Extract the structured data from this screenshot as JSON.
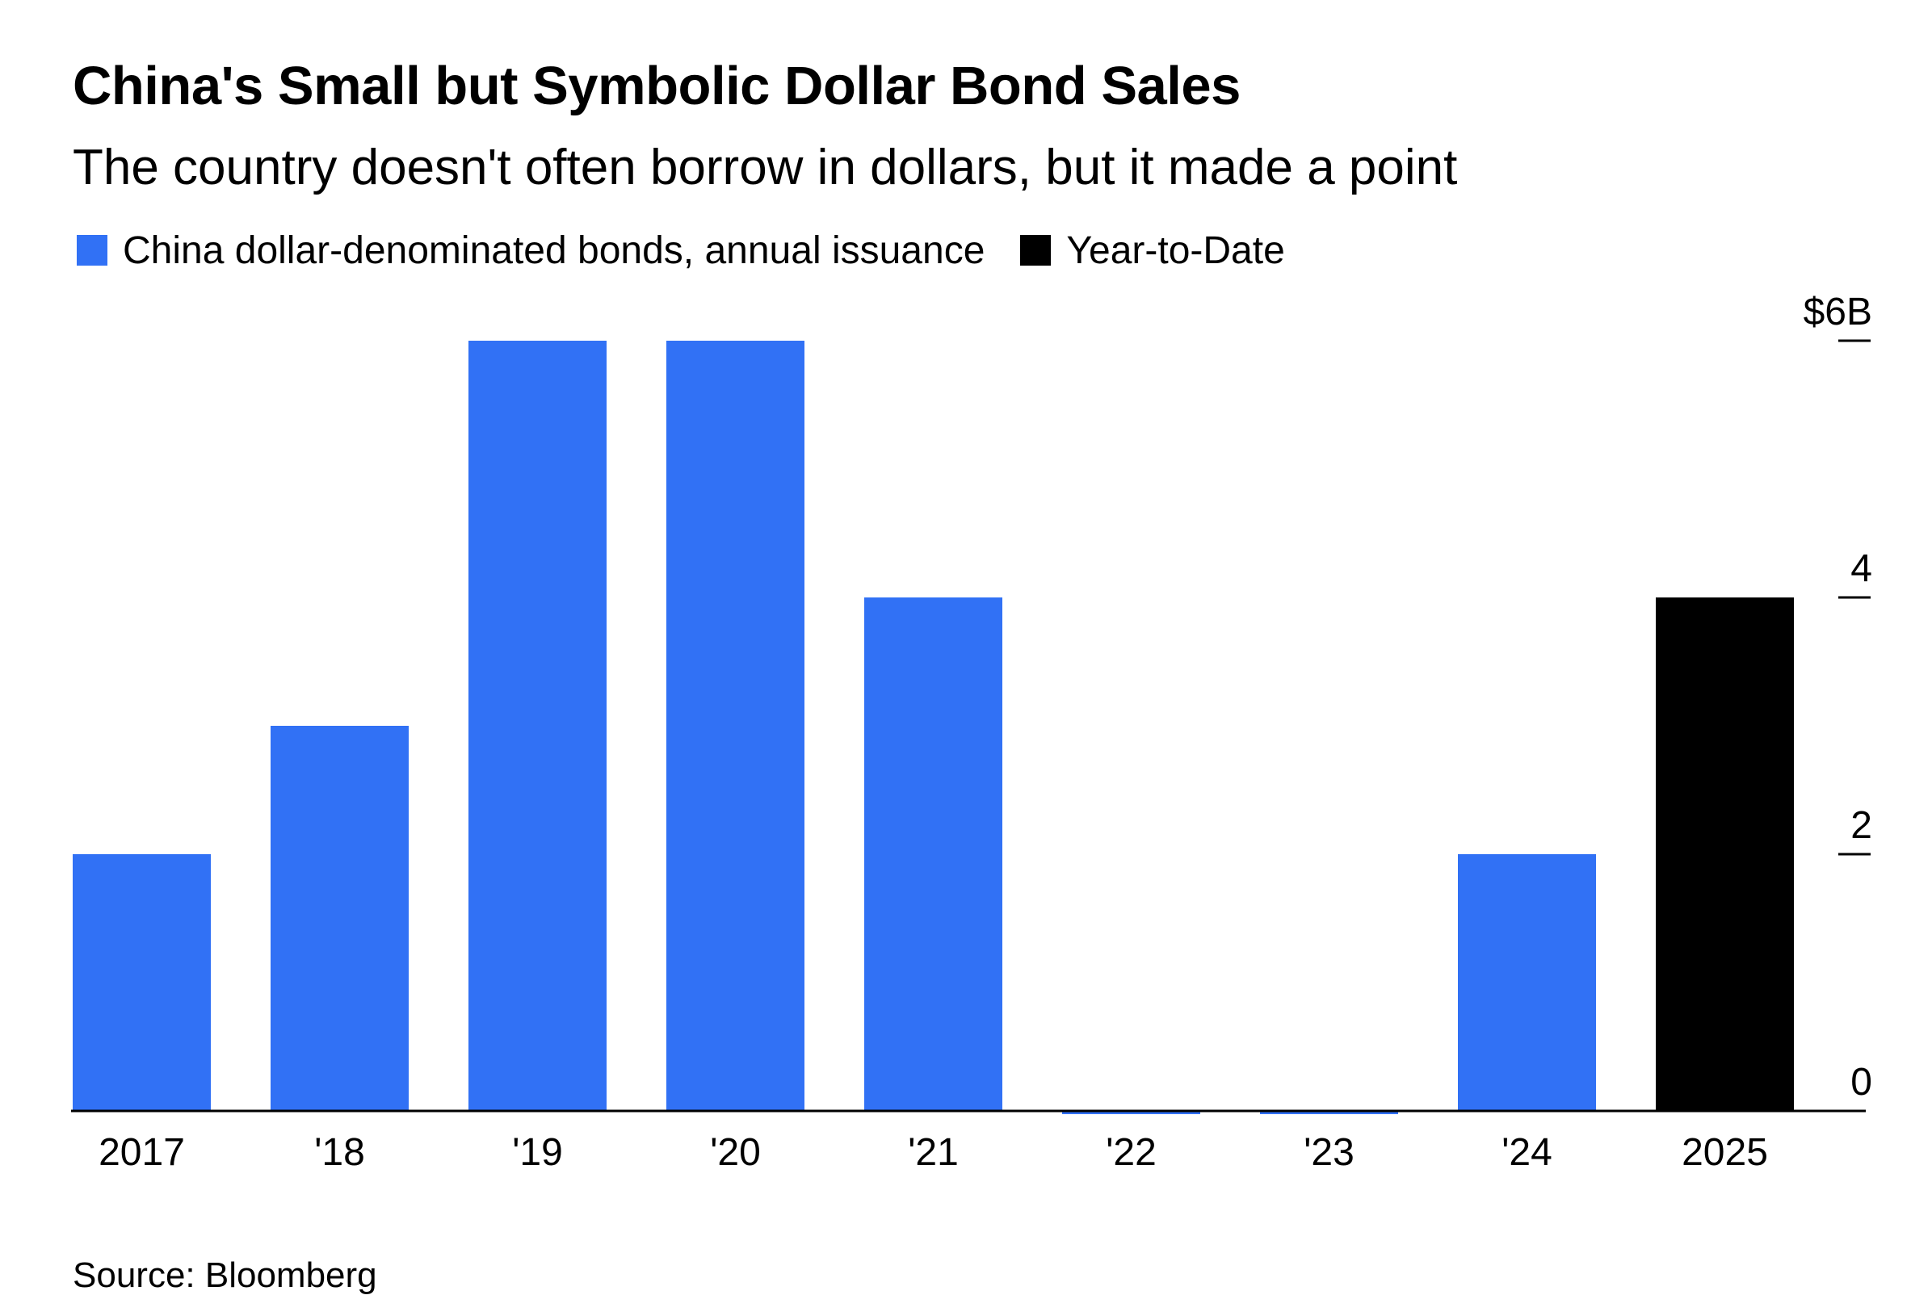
{
  "chart_data": {
    "type": "bar",
    "title": "China's Small but Symbolic Dollar Bond Sales",
    "subtitle": "The country doesn't often borrow in dollars, but it made a point",
    "categories": [
      "2017",
      "'18",
      "'19",
      "'20",
      "'21",
      "'22",
      "'23",
      "'24",
      "2025"
    ],
    "series": [
      {
        "name": "China dollar-denominated bonds, annual issuance",
        "color": "#3171f5",
        "values": [
          2,
          3,
          6,
          6,
          4,
          0,
          0,
          2,
          null
        ]
      },
      {
        "name": "Year-to-Date",
        "color": "#000000",
        "values": [
          null,
          null,
          null,
          null,
          null,
          null,
          null,
          null,
          4
        ]
      }
    ],
    "y_ticks": [
      0,
      2,
      4,
      6
    ],
    "y_tick_labels": [
      "0",
      "2",
      "4",
      "$6B"
    ],
    "ylim": [
      0,
      6
    ],
    "ylabel": "",
    "xlabel": "",
    "axis_position": "right",
    "grid": false,
    "legend_position": "top-left",
    "source": "Source: Bloomberg"
  }
}
